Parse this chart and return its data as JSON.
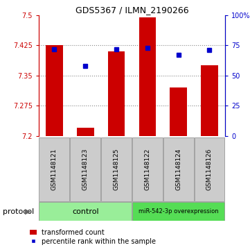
{
  "title": "GDS5367 / ILMN_2190266",
  "samples": [
    "GSM1148121",
    "GSM1148123",
    "GSM1148125",
    "GSM1148122",
    "GSM1148124",
    "GSM1148126"
  ],
  "bar_values": [
    7.425,
    7.22,
    7.41,
    7.495,
    7.32,
    7.375
  ],
  "percentile_values": [
    72,
    58,
    72,
    73,
    67,
    71
  ],
  "ymin": 7.2,
  "ymax": 7.5,
  "yticks": [
    7.2,
    7.275,
    7.35,
    7.425,
    7.5
  ],
  "ytick_labels": [
    "7.2",
    "7.275",
    "7.35",
    "7.425",
    "7.5"
  ],
  "y2min": 0,
  "y2max": 100,
  "y2ticks": [
    0,
    25,
    50,
    75,
    100
  ],
  "y2tick_labels": [
    "0",
    "25",
    "50",
    "75",
    "100%"
  ],
  "bar_color": "#CC0000",
  "dot_color": "#0000CC",
  "left_axis_color": "#CC0000",
  "right_axis_color": "#0000CC",
  "grid_color": "#888888",
  "label_bg_color": "#CCCCCC",
  "protocol_control_color": "#99EE99",
  "protocol_overexp_color": "#55DD55",
  "control_samples_idx": [
    0,
    1,
    2
  ],
  "overexp_samples_idx": [
    3,
    4,
    5
  ],
  "control_label": "control",
  "overexp_label": "miR-542-3p overexpression",
  "protocol_label": "protocol",
  "legend_bar_label": "transformed count",
  "legend_dot_label": "percentile rank within the sample",
  "title_fontsize": 9,
  "tick_fontsize": 7,
  "sample_fontsize": 6.5,
  "legend_fontsize": 7,
  "protocol_fontsize": 8
}
